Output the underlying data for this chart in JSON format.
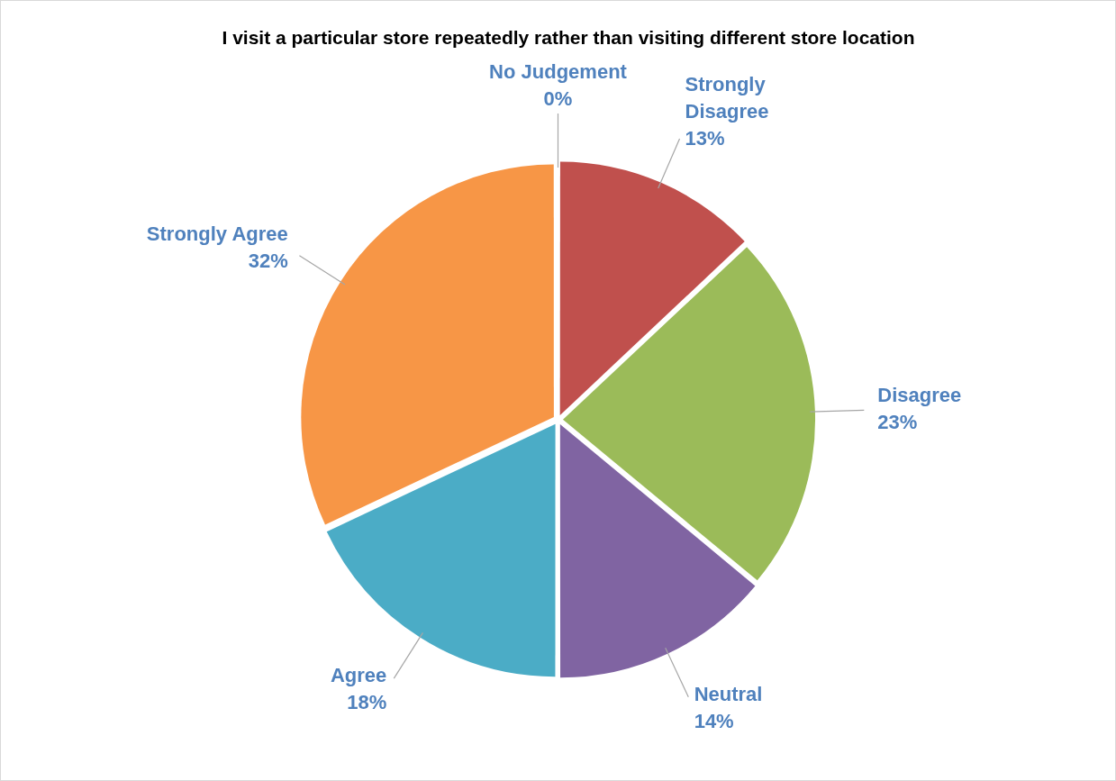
{
  "chart_data": {
    "type": "pie",
    "title": "I visit a particular store repeatedly rather than visiting different store location",
    "categories": [
      "No Judgement",
      "Strongly Disagree",
      "Disagree",
      "Neutral",
      "Agree",
      "Strongly Agree"
    ],
    "values": [
      0,
      13,
      23,
      14,
      18,
      32
    ],
    "colors": [
      "#4f81bd",
      "#c0504d",
      "#9bbb59",
      "#8064a2",
      "#4bacc6",
      "#f79646"
    ],
    "value_labels": [
      "0%",
      "13%",
      "23%",
      "14%",
      "18%",
      "32%"
    ],
    "legend": false
  }
}
